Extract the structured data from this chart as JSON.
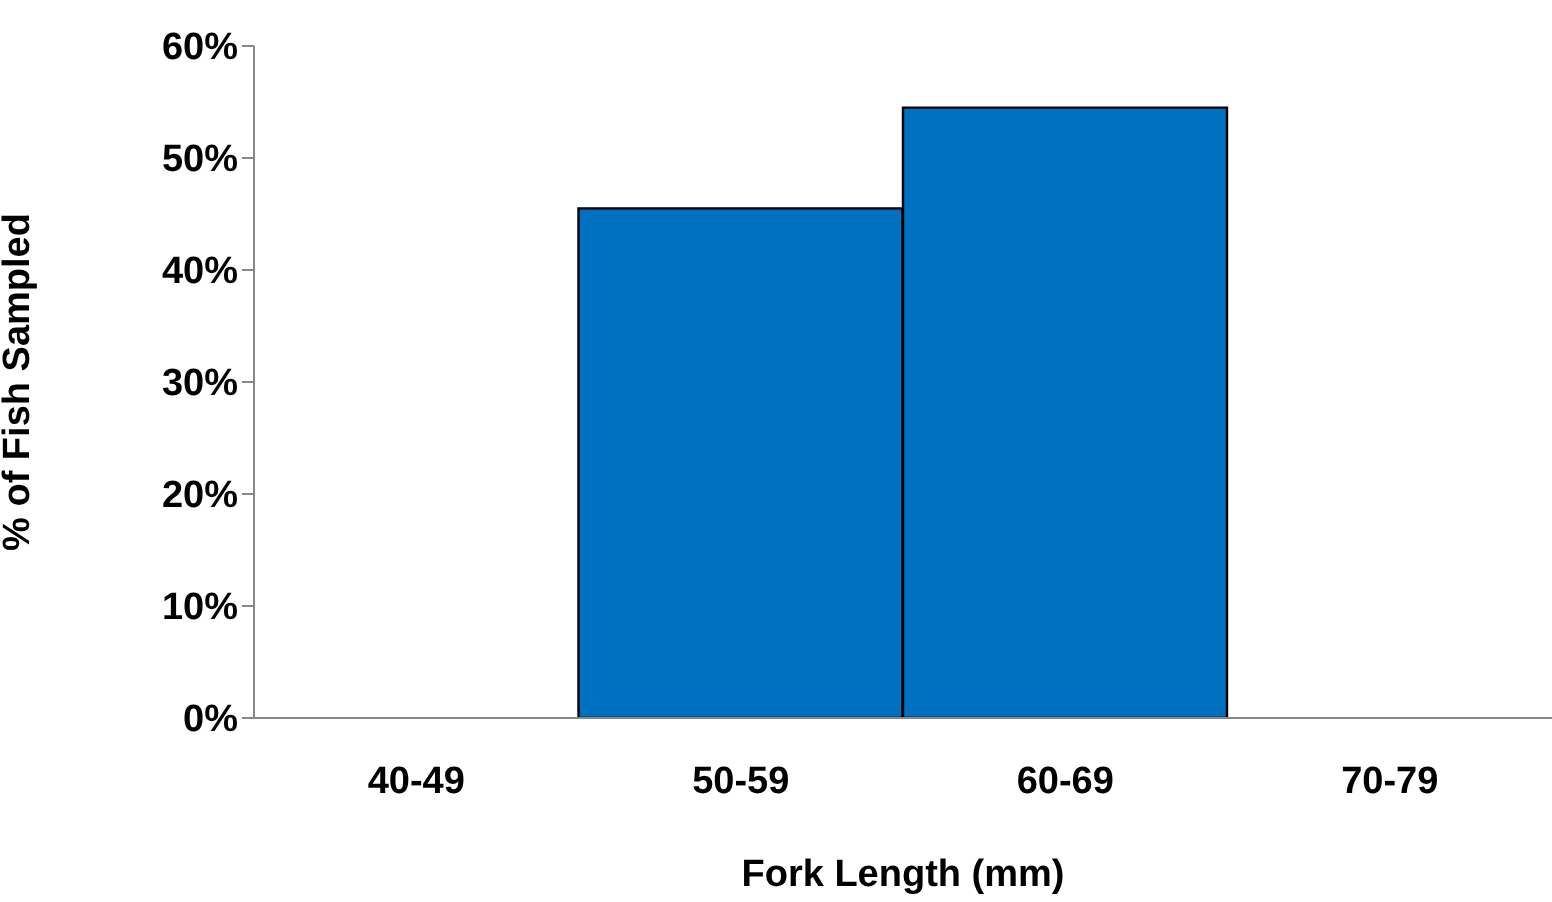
{
  "chart_data": {
    "type": "bar",
    "xlabel": "Fork Length (mm)",
    "ylabel": "% of Fish Sampled",
    "categories": [
      "40-49",
      "50-59",
      "60-69",
      "70-79"
    ],
    "values": [
      0,
      45.5,
      54.5,
      0
    ],
    "color": "#0070c0",
    "ylim": [
      0,
      60
    ],
    "yticks": [
      {
        "value": 0,
        "label": "0%"
      },
      {
        "value": 10,
        "label": "10%"
      },
      {
        "value": 20,
        "label": "20%"
      },
      {
        "value": 30,
        "label": "30%"
      },
      {
        "value": 40,
        "label": "40%"
      },
      {
        "value": 50,
        "label": "50%"
      },
      {
        "value": 60,
        "label": "60%"
      }
    ],
    "grid": false
  }
}
